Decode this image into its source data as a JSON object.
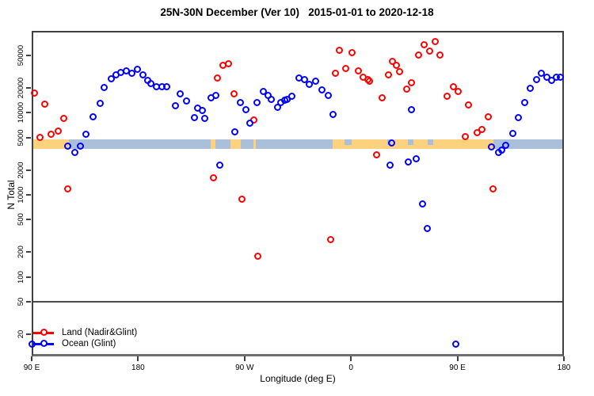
{
  "chart_data": {
    "type": "scatter",
    "title": "25N-30N December (Ver 10)   2015-01-01 to 2020-12-18",
    "xlabel": "Longitude (deg E)",
    "ylabel": "N Total",
    "x_axis": {
      "min_deg": 90,
      "max_deg": 540,
      "ticks": [
        {
          "deg": 90,
          "label": "90 E"
        },
        {
          "deg": 180,
          "label": "180"
        },
        {
          "deg": 270,
          "label": "90 W"
        },
        {
          "deg": 360,
          "label": "0"
        },
        {
          "deg": 450,
          "label": "90 E"
        },
        {
          "deg": 540,
          "label": "180"
        }
      ]
    },
    "y_axis": {
      "scale": "log10",
      "min": 10.7,
      "max": 99600,
      "ticks": [
        20,
        50,
        100,
        200,
        500,
        1000,
        2000,
        5000,
        10000,
        20000,
        50000
      ]
    },
    "threshold_line_value": 50,
    "colors": {
      "land_series": "#ff0000",
      "ocean_series": "#0000ff",
      "band_land": "#fcd27f",
      "band_ocean": "#aabfd9"
    },
    "map_band": {
      "value_center": 4100,
      "segments": [
        {
          "from": 90,
          "to": 121.5,
          "type": "land"
        },
        {
          "from": 121.5,
          "to": 241.3,
          "type": "ocean"
        },
        {
          "from": 241.3,
          "to": 245.4,
          "type": "land"
        },
        {
          "from": 245.4,
          "to": 258.1,
          "type": "ocean"
        },
        {
          "from": 258.1,
          "to": 266.8,
          "type": "land"
        },
        {
          "from": 266.8,
          "to": 277.5,
          "type": "ocean"
        },
        {
          "from": 277.5,
          "to": 279.5,
          "type": "land"
        },
        {
          "from": 279.5,
          "to": 344.5,
          "type": "ocean"
        },
        {
          "from": 344.5,
          "to": 480.4,
          "type": "land"
        },
        {
          "from": 480.4,
          "to": 540,
          "type": "ocean"
        }
      ],
      "ocean_notches": [
        {
          "from": 354.5,
          "to": 360.5
        },
        {
          "from": 390.6,
          "to": 394.0
        },
        {
          "from": 408.1,
          "to": 412.8
        },
        {
          "from": 424.8,
          "to": 429.5
        }
      ]
    },
    "legend": [
      {
        "label": "Land (Nadir&Glint)",
        "color": "#ff0000"
      },
      {
        "label": "Ocean (Glint)",
        "color": "#0000ff"
      }
    ],
    "series": [
      {
        "name": "Land (Nadir&Glint)",
        "color": "#ff0000",
        "points": [
          [
            92.2,
            17500
          ],
          [
            101.2,
            12700
          ],
          [
            116.8,
            8570
          ],
          [
            97.2,
            5030
          ],
          [
            106.7,
            5500
          ],
          [
            112.3,
            6050
          ],
          [
            120.6,
            1190
          ],
          [
            243.6,
            1630
          ],
          [
            246.9,
            26700
          ],
          [
            251.4,
            38000
          ],
          [
            256.1,
            39700
          ],
          [
            261.4,
            17100
          ],
          [
            267.5,
            880
          ],
          [
            277.5,
            8250
          ],
          [
            281.5,
            180
          ],
          [
            342.9,
            286
          ],
          [
            347.1,
            30400
          ],
          [
            350.0,
            57900
          ],
          [
            360.7,
            53700
          ],
          [
            355.6,
            34400
          ],
          [
            366.1,
            32500
          ],
          [
            370.1,
            27200
          ],
          [
            374.1,
            25600
          ],
          [
            375.7,
            24200
          ],
          [
            381.8,
            3040
          ],
          [
            386.2,
            15300
          ],
          [
            391.4,
            28700
          ],
          [
            394.7,
            42500
          ],
          [
            398.7,
            37700
          ],
          [
            400.9,
            31600
          ],
          [
            407.0,
            19400
          ],
          [
            410.8,
            23000
          ],
          [
            417.0,
            50700
          ],
          [
            421.5,
            67100
          ],
          [
            426.4,
            57100
          ],
          [
            430.9,
            73400
          ],
          [
            435.4,
            50700
          ],
          [
            441.2,
            15900
          ],
          [
            446.5,
            20600
          ],
          [
            450.5,
            18000
          ],
          [
            456.8,
            5100
          ],
          [
            459.0,
            12400
          ],
          [
            466.6,
            5750
          ],
          [
            471.0,
            6200
          ],
          [
            476.1,
            8830
          ],
          [
            480.2,
            1190
          ]
        ]
      },
      {
        "name": "Ocean (Glint)",
        "color": "#0000ff",
        "points": [
          [
            120.8,
            3880
          ],
          [
            126.4,
            3270
          ],
          [
            131.3,
            3880
          ],
          [
            136.2,
            5420
          ],
          [
            142.0,
            8980
          ],
          [
            148.1,
            12900
          ],
          [
            151.4,
            20200
          ],
          [
            157.4,
            26100
          ],
          [
            161.0,
            28700
          ],
          [
            165.5,
            30900
          ],
          [
            169.9,
            32500
          ],
          [
            174.8,
            30500
          ],
          [
            179.3,
            33700
          ],
          [
            183.8,
            29300
          ],
          [
            187.8,
            24800
          ],
          [
            191.1,
            22900
          ],
          [
            195.6,
            20600
          ],
          [
            200.0,
            20600
          ],
          [
            204.5,
            20600
          ],
          [
            211.7,
            12300
          ],
          [
            215.7,
            17100
          ],
          [
            221.0,
            13900
          ],
          [
            227.3,
            8790
          ],
          [
            230.2,
            11400
          ],
          [
            234.0,
            10600
          ],
          [
            236.2,
            8560
          ],
          [
            241.8,
            15300
          ],
          [
            245.8,
            16200
          ],
          [
            249.2,
            2280
          ],
          [
            261.9,
            5830
          ],
          [
            266.3,
            13200
          ],
          [
            271.3,
            11000
          ],
          [
            274.8,
            7530
          ],
          [
            280.8,
            13400
          ],
          [
            286.0,
            18000
          ],
          [
            289.8,
            16200
          ],
          [
            292.6,
            14700
          ],
          [
            297.6,
            11700
          ],
          [
            300.9,
            13400
          ],
          [
            303.8,
            14200
          ],
          [
            306.1,
            14700
          ],
          [
            310.3,
            15900
          ],
          [
            316.1,
            26300
          ],
          [
            320.6,
            25300
          ],
          [
            325.0,
            22100
          ],
          [
            330.4,
            24200
          ],
          [
            335.5,
            19100
          ],
          [
            340.7,
            16100
          ],
          [
            345.1,
            9580
          ],
          [
            394.2,
            4280
          ],
          [
            410.8,
            10900
          ],
          [
            393.1,
            2310
          ],
          [
            408.1,
            2540
          ],
          [
            415.4,
            2730
          ],
          [
            420.8,
            771
          ],
          [
            424.8,
            385
          ],
          [
            448.3,
            15
          ],
          [
            90.3,
            15
          ],
          [
            478.9,
            3860
          ],
          [
            484.6,
            3270
          ],
          [
            487.1,
            3510
          ],
          [
            491.1,
            4040
          ],
          [
            496.6,
            5620
          ],
          [
            501.8,
            8770
          ],
          [
            507.0,
            13200
          ],
          [
            511.4,
            19800
          ],
          [
            516.7,
            25300
          ],
          [
            520.8,
            30200
          ],
          [
            525.7,
            27200
          ],
          [
            529.7,
            24700
          ],
          [
            533.7,
            27200
          ],
          [
            536.8,
            27200
          ]
        ]
      }
    ]
  }
}
